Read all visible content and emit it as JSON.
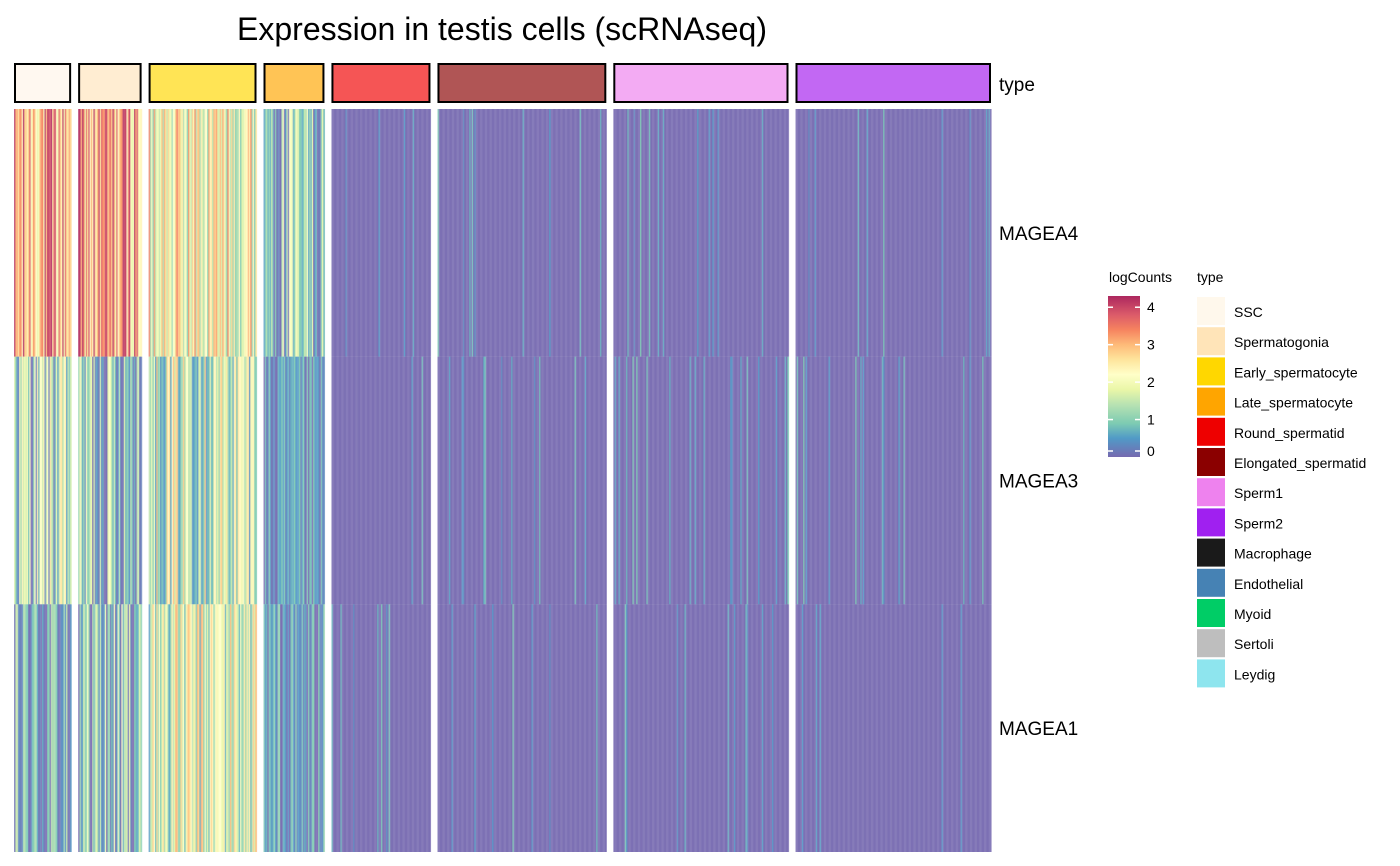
{
  "chart_data": {
    "type": "heatmap",
    "title": "Expression in testis cells (scRNAseq)",
    "rows": [
      "MAGEA4",
      "MAGEA3",
      "MAGEA1"
    ],
    "annotation": {
      "name": "type",
      "columns": [
        {
          "type": "SSC",
          "n_cells": 45,
          "fill": "#FFF8F0"
        },
        {
          "type": "Spermatogonia",
          "n_cells": 50,
          "fill": "#FFEDD2"
        },
        {
          "type": "Early_spermatocyte",
          "n_cells": 85,
          "fill": "#FFE455"
        },
        {
          "type": "Late_spermatocyte",
          "n_cells": 48,
          "fill": "#FFC455"
        },
        {
          "type": "Round_spermatid",
          "n_cells": 78,
          "fill": "#F55555"
        },
        {
          "type": "Elongated_spermatid",
          "n_cells": 133,
          "fill": "#B05555"
        },
        {
          "type": "Sperm1",
          "n_cells": 138,
          "fill": "#F3ABF3"
        },
        {
          "type": "Sperm2",
          "n_cells": 154,
          "fill": "#C268F3"
        }
      ]
    },
    "mean_logCounts": {
      "MAGEA4": [
        3.0,
        3.1,
        2.2,
        0.9,
        0.0,
        0.05,
        0.05,
        0.05
      ],
      "MAGEA3": [
        1.3,
        1.0,
        1.7,
        0.3,
        0.1,
        0.03,
        0.02,
        0.02
      ],
      "MAGEA1": [
        0.6,
        0.9,
        1.8,
        0.4,
        0.0,
        0.0,
        0.02,
        0.0
      ]
    },
    "color_legend": {
      "title": "logCounts",
      "ticks": [
        4,
        3,
        2,
        1,
        0
      ],
      "range": [
        0,
        4.3
      ],
      "stops": [
        {
          "value": 0,
          "color": "#5E4FA2"
        },
        {
          "value": 0.5,
          "color": "#3288BD"
        },
        {
          "value": 0.9,
          "color": "#66C2A5"
        },
        {
          "value": 1.4,
          "color": "#ABDDA4"
        },
        {
          "value": 1.8,
          "color": "#E6F598"
        },
        {
          "value": 2.2,
          "color": "#FFFFBF"
        },
        {
          "value": 2.6,
          "color": "#FEE08B"
        },
        {
          "value": 3.0,
          "color": "#FDAE61"
        },
        {
          "value": 3.4,
          "color": "#F46D43"
        },
        {
          "value": 3.8,
          "color": "#D53E4F"
        },
        {
          "value": 4.3,
          "color": "#9E0142"
        }
      ]
    },
    "type_legend": {
      "title": "type",
      "items": [
        {
          "label": "SSC",
          "color": "#FFF8EC"
        },
        {
          "label": "Spermatogonia",
          "color": "#FFE4B8"
        },
        {
          "label": "Early_spermatocyte",
          "color": "#FFD700"
        },
        {
          "label": "Late_spermatocyte",
          "color": "#FFA500"
        },
        {
          "label": "Round_spermatid",
          "color": "#EE0000"
        },
        {
          "label": "Elongated_spermatid",
          "color": "#8B0000"
        },
        {
          "label": "Sperm1",
          "color": "#EE82EE"
        },
        {
          "label": "Sperm2",
          "color": "#A020F0"
        },
        {
          "label": "Macrophage",
          "color": "#1A1A1A"
        },
        {
          "label": "Endothelial",
          "color": "#4682B4"
        },
        {
          "label": "Myoid",
          "color": "#00CD66"
        },
        {
          "label": "Sertoli",
          "color": "#BEBEBE"
        },
        {
          "label": "Leydig",
          "color": "#8EE5EE"
        }
      ]
    }
  }
}
